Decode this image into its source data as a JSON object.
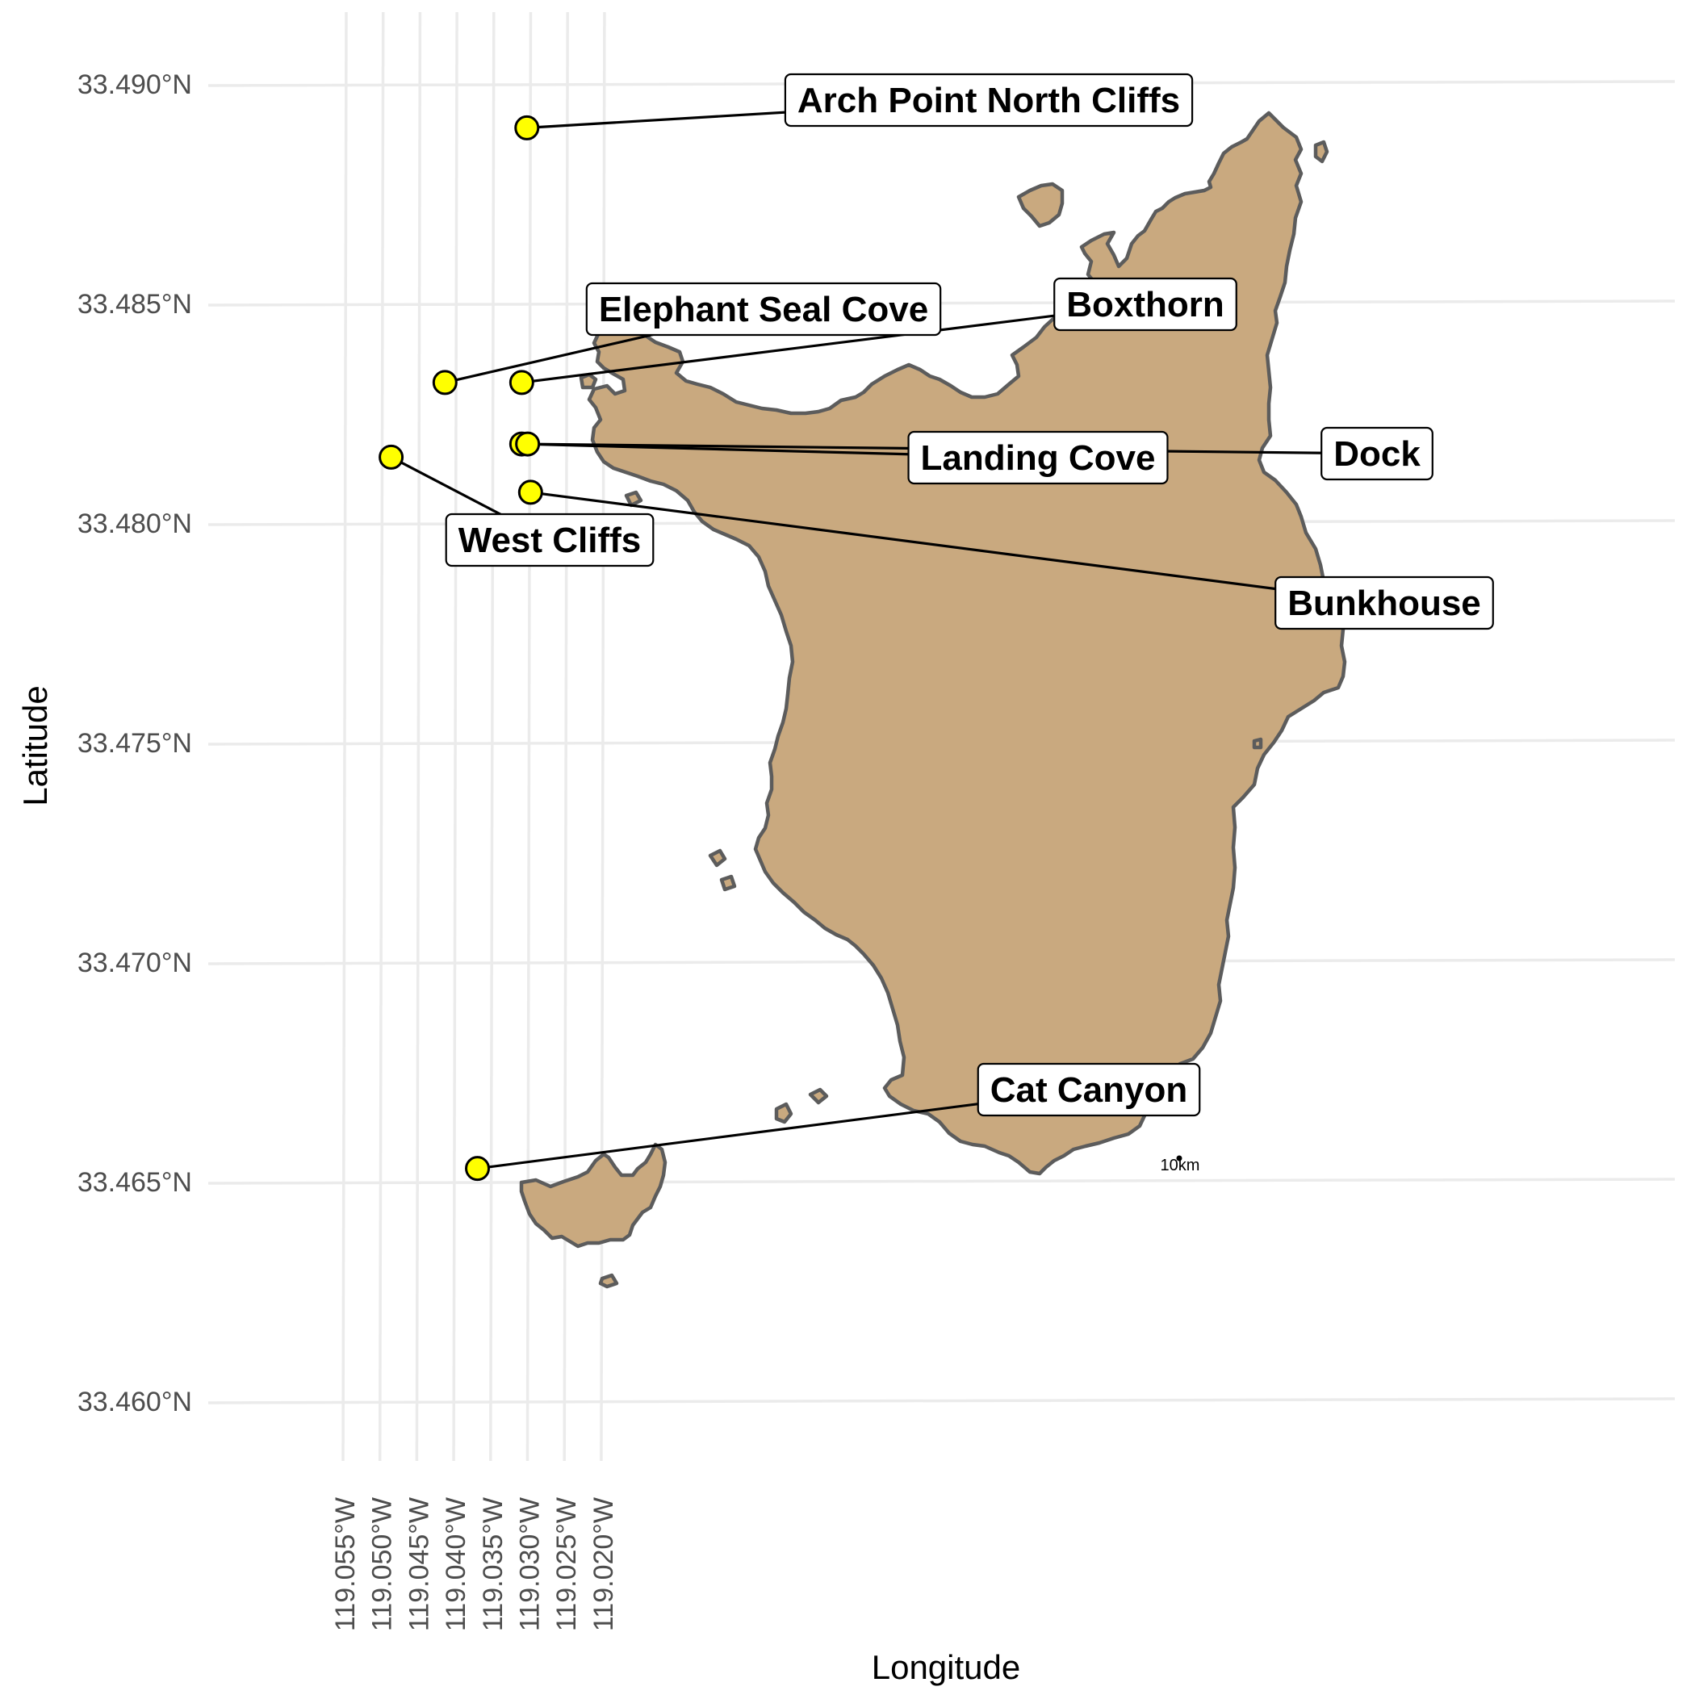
{
  "chart_data": {
    "type": "map",
    "xlabel": "Longitude",
    "ylabel": "Latitude",
    "xlim": [
      -119.0595,
      -119.0195
    ],
    "ylim": [
      33.4585,
      33.4917
    ],
    "x_ticks": [
      "119.055°W",
      "119.050°W",
      "119.045°W",
      "119.040°W",
      "119.035°W",
      "119.030°W",
      "119.025°W",
      "119.020°W"
    ],
    "y_ticks": [
      "33.460°N",
      "33.465°N",
      "33.470°N",
      "33.475°N",
      "33.480°N",
      "33.485°N",
      "33.490°N"
    ],
    "grid": true,
    "land_color": "#c9a97f",
    "point_color": "#ffff00",
    "sites": [
      {
        "name": "Arch Point North Cliffs",
        "lon": -119.0303,
        "lat": 33.489
      },
      {
        "name": "Elephant Seal Cove",
        "lon": -119.0414,
        "lat": 33.4832
      },
      {
        "name": "Boxthorn",
        "lon": -119.031,
        "lat": 33.4832
      },
      {
        "name": "West Cliffs",
        "lon": -119.0487,
        "lat": 33.4815
      },
      {
        "name": "Landing Cove",
        "lon": -119.031,
        "lat": 33.4818
      },
      {
        "name": "Dock",
        "lon": -119.0302,
        "lat": 33.4818
      },
      {
        "name": "Bunkhouse",
        "lon": -119.0298,
        "lat": 33.4807
      },
      {
        "name": "Cat Canyon",
        "lon": -119.037,
        "lat": 33.4653
      }
    ],
    "scale_bar": "10km"
  }
}
